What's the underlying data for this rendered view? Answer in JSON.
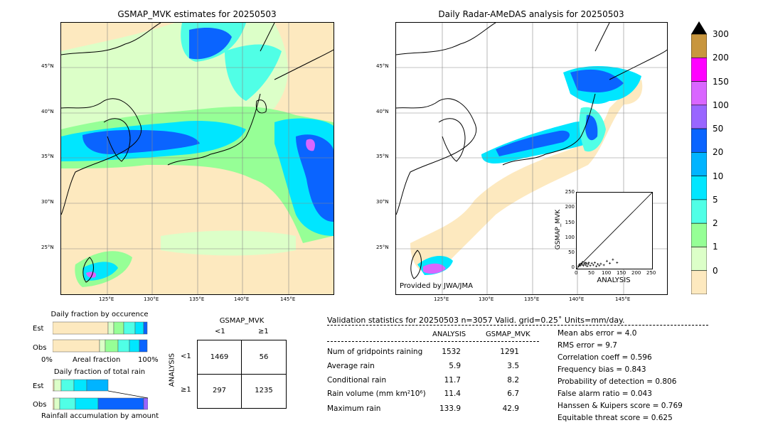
{
  "left_map": {
    "title": "GSMAP_MVK estimates for 20250503",
    "lat_labels": [
      "45°N",
      "40°N",
      "35°N",
      "30°N",
      "25°N"
    ],
    "lon_labels": [
      "125°E",
      "130°E",
      "135°E",
      "140°E",
      "145°E"
    ]
  },
  "right_map": {
    "title": "Daily Radar-AMeDAS analysis for 20250503",
    "lat_labels": [
      "45°N",
      "40°N",
      "35°N",
      "30°N",
      "25°N"
    ],
    "lon_labels": [
      "125°E",
      "130°E",
      "135°E",
      "140°E",
      "145°E"
    ],
    "credit": "Provided by JWA/JMA"
  },
  "colorbar": {
    "ticks": [
      "300",
      "200",
      "150",
      "100",
      "50",
      "20",
      "10",
      "5",
      "2",
      "1",
      "0"
    ],
    "colors": [
      "#c8963e",
      "#ff00ff",
      "#d966ff",
      "#9966ff",
      "#0a64ff",
      "#00b4ff",
      "#00e6ff",
      "#50ffe6",
      "#96ff96",
      "#dcffc8",
      "#fde9bf"
    ]
  },
  "scatter": {
    "ylabel": "GSMAP_MVK",
    "xlabel": "ANALYSIS",
    "ticks": [
      "0",
      "50",
      "100",
      "150",
      "200",
      "250"
    ]
  },
  "occurrence": {
    "title": "Daily fraction by occurence",
    "rows": [
      "Est",
      "Obs"
    ],
    "axis_left": "0%",
    "axis_mid": "Areal fraction",
    "axis_right": "100%"
  },
  "total_rain": {
    "title": "Daily fraction of total rain",
    "rows": [
      "Est",
      "Obs"
    ],
    "axis_label": "Rainfall accumulation by amount"
  },
  "contingency": {
    "title": "GSMAP_MVK",
    "col_labels": [
      "<1",
      "≥1"
    ],
    "row_labels": [
      "<1",
      "≥1"
    ],
    "side_label": "ANALYSIS",
    "cells": [
      "1469",
      "56",
      "297",
      "1235"
    ]
  },
  "stats": {
    "header": "Validation statistics for 20250503  n=3057 Valid. grid=0.25˚ Units=mm/day.",
    "col1": "ANALYSIS",
    "col2": "GSMAP_MVK",
    "rows": [
      {
        "label": "Num of gridpoints raining",
        "a": "1532",
        "b": "1291"
      },
      {
        "label": "Average rain",
        "a": "5.9",
        "b": "3.5"
      },
      {
        "label": "Conditional rain",
        "a": "11.7",
        "b": "8.2"
      },
      {
        "label": "Rain volume (mm km²10⁶)",
        "a": "11.4",
        "b": "6.7"
      },
      {
        "label": "Maximum rain",
        "a": "133.9",
        "b": "42.9"
      }
    ],
    "right": [
      "Mean abs error =    4.0",
      "RMS error =    9.7",
      "Correlation coeff =  0.596",
      "Frequency bias =  0.843",
      "Probability of detection =  0.806",
      "False alarm ratio =  0.043",
      "Hanssen & Kuipers score =  0.769",
      "Equitable threat score =  0.625"
    ]
  },
  "chart_data": [
    {
      "type": "heatmap",
      "title": "GSMAP_MVK estimates for 20250503",
      "x_ticks": [
        "125°E",
        "130°E",
        "135°E",
        "140°E",
        "145°E"
      ],
      "y_ticks": [
        "45°N",
        "40°N",
        "35°N",
        "30°N",
        "25°N"
      ]
    },
    {
      "type": "heatmap",
      "title": "Daily Radar-AMeDAS analysis for 20250503",
      "x_ticks": [
        "125°E",
        "130°E",
        "135°E",
        "140°E",
        "145°E"
      ],
      "y_ticks": [
        "45°N",
        "40°N",
        "35°N",
        "30°N",
        "25°N"
      ]
    },
    {
      "type": "scatter",
      "xlabel": "ANALYSIS",
      "ylabel": "GSMAP_MVK",
      "xlim": [
        0,
        250
      ],
      "ylim": [
        0,
        250
      ],
      "points": [
        [
          5,
          8
        ],
        [
          8,
          12
        ],
        [
          10,
          15
        ],
        [
          12,
          10
        ],
        [
          15,
          18
        ],
        [
          18,
          14
        ],
        [
          20,
          22
        ],
        [
          22,
          10
        ],
        [
          25,
          16
        ],
        [
          28,
          20
        ],
        [
          30,
          12
        ],
        [
          32,
          18
        ],
        [
          35,
          8
        ],
        [
          38,
          15
        ],
        [
          40,
          20
        ],
        [
          45,
          10
        ],
        [
          50,
          18
        ],
        [
          55,
          12
        ],
        [
          60,
          20
        ],
        [
          65,
          8
        ],
        [
          70,
          15
        ],
        [
          75,
          10
        ],
        [
          80,
          16
        ],
        [
          90,
          12
        ],
        [
          100,
          25
        ],
        [
          110,
          18
        ],
        [
          120,
          30
        ],
        [
          134,
          20
        ]
      ]
    },
    {
      "type": "bar",
      "title": "Daily fraction by occurence",
      "categories": [
        "Est",
        "Obs"
      ]
    },
    {
      "type": "bar",
      "title": "Daily fraction of total rain",
      "categories": [
        "Est",
        "Obs"
      ]
    },
    {
      "type": "table",
      "title": "GSMAP_MVK",
      "col_labels": [
        "<1",
        "≥1"
      ],
      "row_labels": [
        "<1",
        "≥1"
      ],
      "cells": [
        [
          1469,
          56
        ],
        [
          297,
          1235
        ]
      ]
    }
  ]
}
